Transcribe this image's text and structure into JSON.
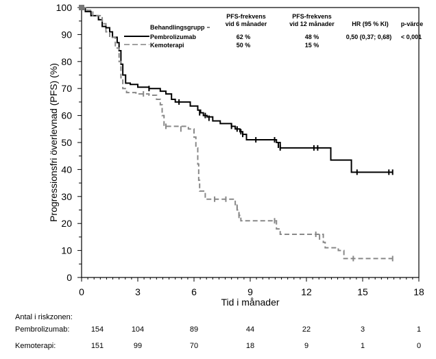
{
  "chart_data": {
    "type": "line",
    "subtype": "kaplan-meier",
    "xlabel": "Tid i månader",
    "ylabel": "Progressionsfri överlevnad (PFS) (%)",
    "xlim": [
      0,
      18
    ],
    "ylim": [
      0,
      100
    ],
    "xticks": [
      "0",
      "3",
      "6",
      "9",
      "12",
      "15",
      "18"
    ],
    "yticks": [
      "0",
      "10",
      "20",
      "30",
      "40",
      "50",
      "60",
      "70",
      "80",
      "90",
      "100"
    ],
    "legend": {
      "position": "top-right",
      "header_group": "Behandlingsgrupp",
      "header_pfs6": "PFS-frekvens vid 6 månader",
      "header_pfs6_line1": "PFS-frekvens",
      "header_pfs6_line2": "vid 6 månader",
      "header_pfs12_line1": "PFS-frekvens",
      "header_pfs12_line2": "vid 12 månader",
      "header_hr": "HR (95 % KI)",
      "header_p": "p-värde",
      "rows": [
        {
          "name": "Pembrolizumab",
          "pfs6": "62 %",
          "pfs12": "48 %",
          "hr": "0,50 (0,37; 0,68)",
          "p": "< 0,001"
        },
        {
          "name": "Kemoterapi",
          "pfs6": "50 %",
          "pfs12": "15 %",
          "hr": "",
          "p": ""
        }
      ]
    },
    "series": [
      {
        "name": "Pembrolizumab",
        "color": "#000000",
        "style": "solid",
        "steps": [
          [
            0,
            100
          ],
          [
            0.2,
            98.5
          ],
          [
            0.5,
            97
          ],
          [
            0.9,
            95.5
          ],
          [
            1.1,
            93
          ],
          [
            1.3,
            92.5
          ],
          [
            1.5,
            91
          ],
          [
            1.65,
            89
          ],
          [
            1.9,
            87
          ],
          [
            2.0,
            84
          ],
          [
            2.1,
            79
          ],
          [
            2.2,
            75
          ],
          [
            2.35,
            72
          ],
          [
            2.6,
            71.5
          ],
          [
            3.0,
            70.5
          ],
          [
            3.6,
            70
          ],
          [
            4.2,
            69
          ],
          [
            4.5,
            68
          ],
          [
            4.8,
            66
          ],
          [
            5.0,
            65
          ],
          [
            5.8,
            63.5
          ],
          [
            6.2,
            62
          ],
          [
            6.35,
            61
          ],
          [
            6.5,
            60
          ],
          [
            6.7,
            59.5
          ],
          [
            7.0,
            58
          ],
          [
            7.4,
            57
          ],
          [
            8.0,
            56
          ],
          [
            8.2,
            55
          ],
          [
            8.45,
            54
          ],
          [
            8.6,
            53
          ],
          [
            8.8,
            51
          ],
          [
            10.2,
            51
          ],
          [
            10.4,
            50
          ],
          [
            10.6,
            48
          ],
          [
            12.7,
            48
          ],
          [
            13.3,
            43.5
          ],
          [
            14.4,
            39
          ],
          [
            16.6,
            39
          ]
        ],
        "censored": [
          [
            3.6,
            70
          ],
          [
            5.2,
            65
          ],
          [
            6.3,
            61
          ],
          [
            6.6,
            60
          ],
          [
            6.8,
            59
          ],
          [
            8.0,
            56
          ],
          [
            8.3,
            55
          ],
          [
            8.5,
            54
          ],
          [
            8.6,
            53
          ],
          [
            9.3,
            51
          ],
          [
            10.3,
            51
          ],
          [
            10.5,
            49
          ],
          [
            10.6,
            48
          ],
          [
            12.4,
            48
          ],
          [
            12.6,
            48
          ],
          [
            14.7,
            39
          ],
          [
            16.4,
            39
          ],
          [
            16.6,
            39
          ]
        ]
      },
      {
        "name": "Kemoterapi",
        "color": "#808080",
        "style": "dashed",
        "steps": [
          [
            0,
            100
          ],
          [
            0.3,
            99
          ],
          [
            0.6,
            97
          ],
          [
            1.1,
            94
          ],
          [
            1.3,
            91
          ],
          [
            1.5,
            89
          ],
          [
            1.8,
            85
          ],
          [
            2.0,
            80
          ],
          [
            2.1,
            74
          ],
          [
            2.2,
            70
          ],
          [
            2.4,
            68.5
          ],
          [
            2.9,
            68
          ],
          [
            3.6,
            67.5
          ],
          [
            4.0,
            66
          ],
          [
            4.2,
            64
          ],
          [
            4.3,
            60
          ],
          [
            4.4,
            56
          ],
          [
            5.7,
            55
          ],
          [
            6.0,
            52
          ],
          [
            6.1,
            48
          ],
          [
            6.2,
            42
          ],
          [
            6.25,
            36
          ],
          [
            6.3,
            32
          ],
          [
            6.6,
            29
          ],
          [
            7.9,
            29
          ],
          [
            8.2,
            27
          ],
          [
            8.3,
            25
          ],
          [
            8.4,
            23
          ],
          [
            8.5,
            21
          ],
          [
            10.2,
            21
          ],
          [
            10.4,
            18
          ],
          [
            10.6,
            16
          ],
          [
            12.6,
            16
          ],
          [
            12.9,
            13
          ],
          [
            13.0,
            11
          ],
          [
            13.7,
            10
          ],
          [
            14.0,
            7
          ],
          [
            16.6,
            7
          ]
        ],
        "censored": [
          [
            3.3,
            68
          ],
          [
            4.5,
            56
          ],
          [
            5.3,
            55
          ],
          [
            7.1,
            29
          ],
          [
            7.7,
            29
          ],
          [
            8.3,
            26
          ],
          [
            8.4,
            23
          ],
          [
            10.3,
            21
          ],
          [
            12.5,
            16
          ],
          [
            12.7,
            15
          ],
          [
            14.5,
            7
          ],
          [
            16.6,
            7
          ]
        ]
      }
    ],
    "risk_table": {
      "title": "Antal i riskzonen:",
      "times": [
        0,
        3,
        6,
        9,
        12,
        15,
        18
      ],
      "rows": [
        {
          "label": "Pembrolizumab:",
          "values": [
            "154",
            "104",
            "89",
            "44",
            "22",
            "3",
            "1"
          ]
        },
        {
          "label": "Kemoterapi:",
          "values": [
            "151",
            "99",
            "70",
            "18",
            "9",
            "1",
            "0"
          ]
        }
      ]
    }
  }
}
